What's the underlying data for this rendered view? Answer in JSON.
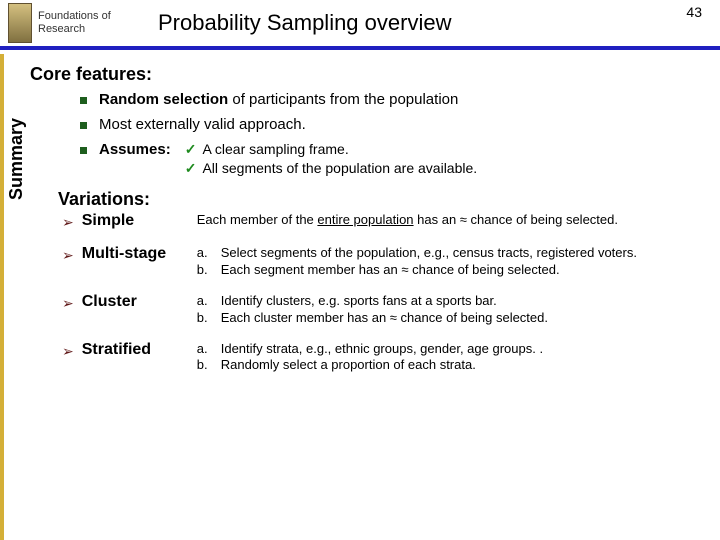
{
  "header": {
    "course_line1": "Foundations of",
    "course_line2": "Research",
    "title": "Probability Sampling overview",
    "page": "43"
  },
  "core": {
    "heading": "Core features:",
    "items": [
      {
        "html": "<b>Random selection</b> of participants from the population"
      },
      {
        "html": "Most externally valid approach."
      },
      {
        "html": "<b>Assumes:</b>",
        "checks": [
          "A clear sampling frame.",
          "All segments of the population are available."
        ]
      }
    ]
  },
  "summary_label": "Summary",
  "variations": {
    "heading": "Variations:",
    "items": [
      {
        "name": "Simple",
        "desc_html": "Each member of the <u>entire population</u> has an ≈ chance of being selected."
      },
      {
        "name": "Multi-stage",
        "subs": [
          {
            "label": "a.",
            "text": "Select segments of the population, e.g., census tracts, registered voters."
          },
          {
            "label": "b.",
            "text": "Each segment member has an ≈ chance of being selected."
          }
        ]
      },
      {
        "name": "Cluster",
        "subs": [
          {
            "label": "a.",
            "text": "Identify clusters, e.g. sports fans at a sports bar."
          },
          {
            "label": "b.",
            "text": "Each cluster member has an ≈ chance of being selected."
          }
        ]
      },
      {
        "name": "Stratified",
        "subs": [
          {
            "label": "a.",
            "text": "Identify strata, e.g., ethnic groups, gender, age groups. ."
          },
          {
            "label": "b.",
            "text": "Randomly select a proportion of each strata."
          }
        ]
      }
    ]
  },
  "colors": {
    "rule": "#2020c0",
    "gold": "#d4af37",
    "square": "#1e5e1e",
    "check": "#1e8a1e",
    "arrow": "#601818"
  }
}
